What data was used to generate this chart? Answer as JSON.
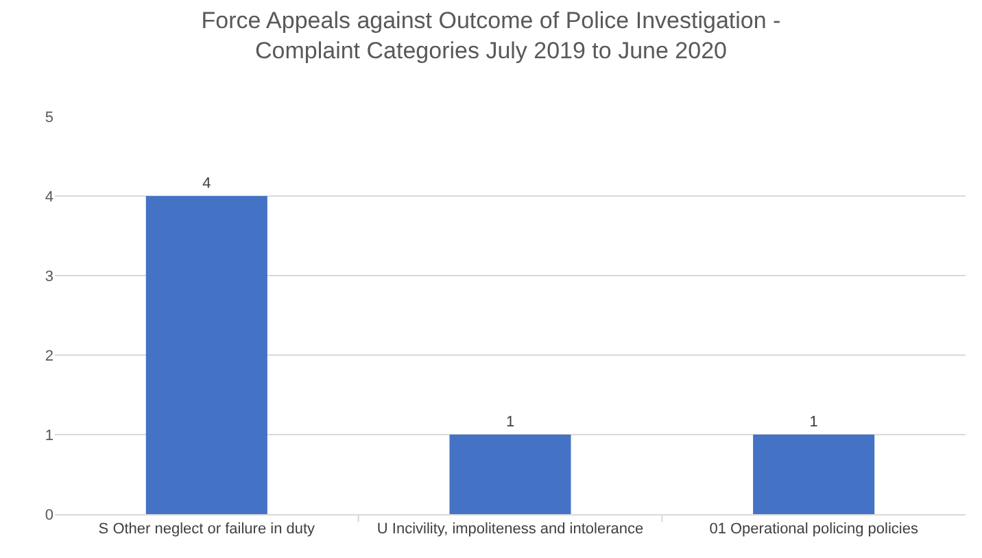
{
  "chart_data": {
    "type": "bar",
    "title": "Force Appeals against Outcome of Police Investigation - Complaint Categories July 2019 to June 2020",
    "categories": [
      "S Other neglect or failure in duty",
      "U Incivility, impoliteness and intolerance",
      "01 Operational policing policies"
    ],
    "values": [
      4,
      1,
      1
    ],
    "color": "#4472c4",
    "ylim": [
      0,
      5
    ],
    "yticks": [
      0,
      1,
      2,
      3,
      4,
      5
    ],
    "grid": "y",
    "data_labels": true
  }
}
